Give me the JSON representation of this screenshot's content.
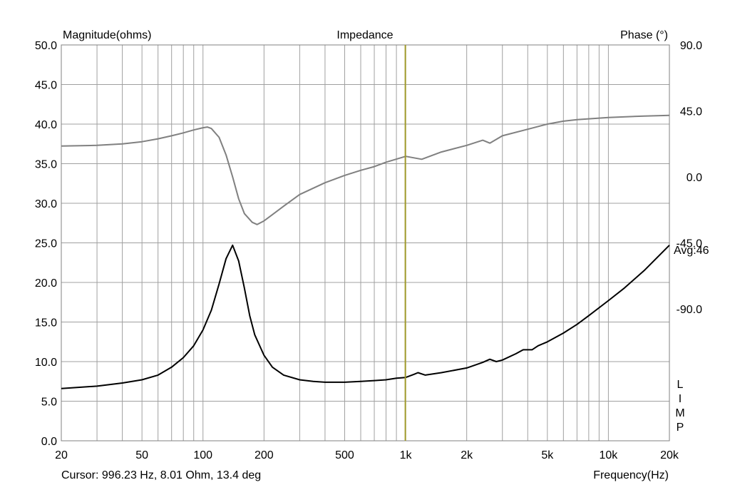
{
  "chart_data": {
    "type": "line",
    "title": "Impedance",
    "left_axis_label": "Magnitude(ohms)",
    "right_axis_label": "Phase (°)",
    "xlabel": "Frequency(Hz)",
    "x_scale": "log",
    "xlim": [
      20,
      20000
    ],
    "ylim": [
      0,
      50
    ],
    "phase_lim": [
      -180,
      90
    ],
    "grid": true,
    "x_ticks": [
      {
        "value": 20,
        "label": "20"
      },
      {
        "value": 50,
        "label": "50"
      },
      {
        "value": 100,
        "label": "100"
      },
      {
        "value": 200,
        "label": "200"
      },
      {
        "value": 500,
        "label": "500"
      },
      {
        "value": 1000,
        "label": "1k"
      },
      {
        "value": 2000,
        "label": "2k"
      },
      {
        "value": 5000,
        "label": "5k"
      },
      {
        "value": 10000,
        "label": "10k"
      },
      {
        "value": 20000,
        "label": "20k"
      }
    ],
    "y_ticks_left": [
      "0.0",
      "5.0",
      "10.0",
      "15.0",
      "20.0",
      "25.0",
      "30.0",
      "35.0",
      "40.0",
      "45.0",
      "50.0"
    ],
    "y_ticks_right": [
      {
        "value": 90,
        "label": "90.0"
      },
      {
        "value": 45,
        "label": "45.0"
      },
      {
        "value": 0,
        "label": "0.0"
      },
      {
        "value": -45,
        "label": "-45.0"
      },
      {
        "value": -90,
        "label": "-90.0"
      }
    ],
    "avg_label": "Avg:46",
    "side_label": "LIMP",
    "cursor": {
      "frequency": 996.23,
      "color": "#a09a2a"
    },
    "cursor_text": "Cursor: 996.23 Hz, 8.01 Ohm, 13.4 deg",
    "series": [
      {
        "id": "magnitude",
        "axis": "left",
        "color": "#000000",
        "points": [
          [
            20,
            6.6
          ],
          [
            30,
            6.9
          ],
          [
            40,
            7.3
          ],
          [
            50,
            7.7
          ],
          [
            60,
            8.3
          ],
          [
            70,
            9.3
          ],
          [
            80,
            10.5
          ],
          [
            90,
            12.0
          ],
          [
            100,
            14.0
          ],
          [
            110,
            16.5
          ],
          [
            120,
            19.8
          ],
          [
            130,
            23.0
          ],
          [
            140,
            24.7
          ],
          [
            150,
            22.7
          ],
          [
            160,
            19.3
          ],
          [
            170,
            15.8
          ],
          [
            180,
            13.4
          ],
          [
            200,
            10.8
          ],
          [
            220,
            9.3
          ],
          [
            250,
            8.3
          ],
          [
            300,
            7.7
          ],
          [
            350,
            7.5
          ],
          [
            400,
            7.4
          ],
          [
            500,
            7.4
          ],
          [
            600,
            7.5
          ],
          [
            700,
            7.6
          ],
          [
            800,
            7.7
          ],
          [
            900,
            7.9
          ],
          [
            1000,
            8.0
          ],
          [
            1100,
            8.4
          ],
          [
            1150,
            8.6
          ],
          [
            1250,
            8.3
          ],
          [
            1500,
            8.6
          ],
          [
            2000,
            9.2
          ],
          [
            2400,
            9.9
          ],
          [
            2600,
            10.3
          ],
          [
            2800,
            10.0
          ],
          [
            3000,
            10.2
          ],
          [
            3500,
            11.0
          ],
          [
            3800,
            11.5
          ],
          [
            4200,
            11.5
          ],
          [
            4500,
            12.0
          ],
          [
            5000,
            12.5
          ],
          [
            6000,
            13.6
          ],
          [
            7000,
            14.7
          ],
          [
            8000,
            15.8
          ],
          [
            10000,
            17.7
          ],
          [
            12000,
            19.3
          ],
          [
            15000,
            21.5
          ],
          [
            20000,
            24.7
          ]
        ]
      },
      {
        "id": "phase",
        "axis": "right",
        "color": "#808080",
        "points": [
          [
            20,
            21
          ],
          [
            30,
            21.5
          ],
          [
            40,
            22.5
          ],
          [
            50,
            24
          ],
          [
            60,
            26
          ],
          [
            70,
            28
          ],
          [
            80,
            30
          ],
          [
            90,
            32
          ],
          [
            100,
            33.5
          ],
          [
            105,
            34
          ],
          [
            110,
            33
          ],
          [
            120,
            27
          ],
          [
            130,
            15
          ],
          [
            140,
            0
          ],
          [
            150,
            -15
          ],
          [
            160,
            -25
          ],
          [
            175,
            -31
          ],
          [
            185,
            -32.5
          ],
          [
            200,
            -30
          ],
          [
            250,
            -20
          ],
          [
            300,
            -12
          ],
          [
            400,
            -4
          ],
          [
            500,
            1
          ],
          [
            600,
            4.5
          ],
          [
            700,
            7
          ],
          [
            800,
            10
          ],
          [
            1000,
            14
          ],
          [
            1200,
            12
          ],
          [
            1500,
            17
          ],
          [
            2000,
            21.5
          ],
          [
            2400,
            25
          ],
          [
            2600,
            23
          ],
          [
            3000,
            28
          ],
          [
            4000,
            32.5
          ],
          [
            5000,
            36
          ],
          [
            6000,
            38
          ],
          [
            7000,
            39
          ],
          [
            10000,
            40.5
          ],
          [
            15000,
            41.5
          ],
          [
            20000,
            42
          ]
        ]
      }
    ]
  }
}
